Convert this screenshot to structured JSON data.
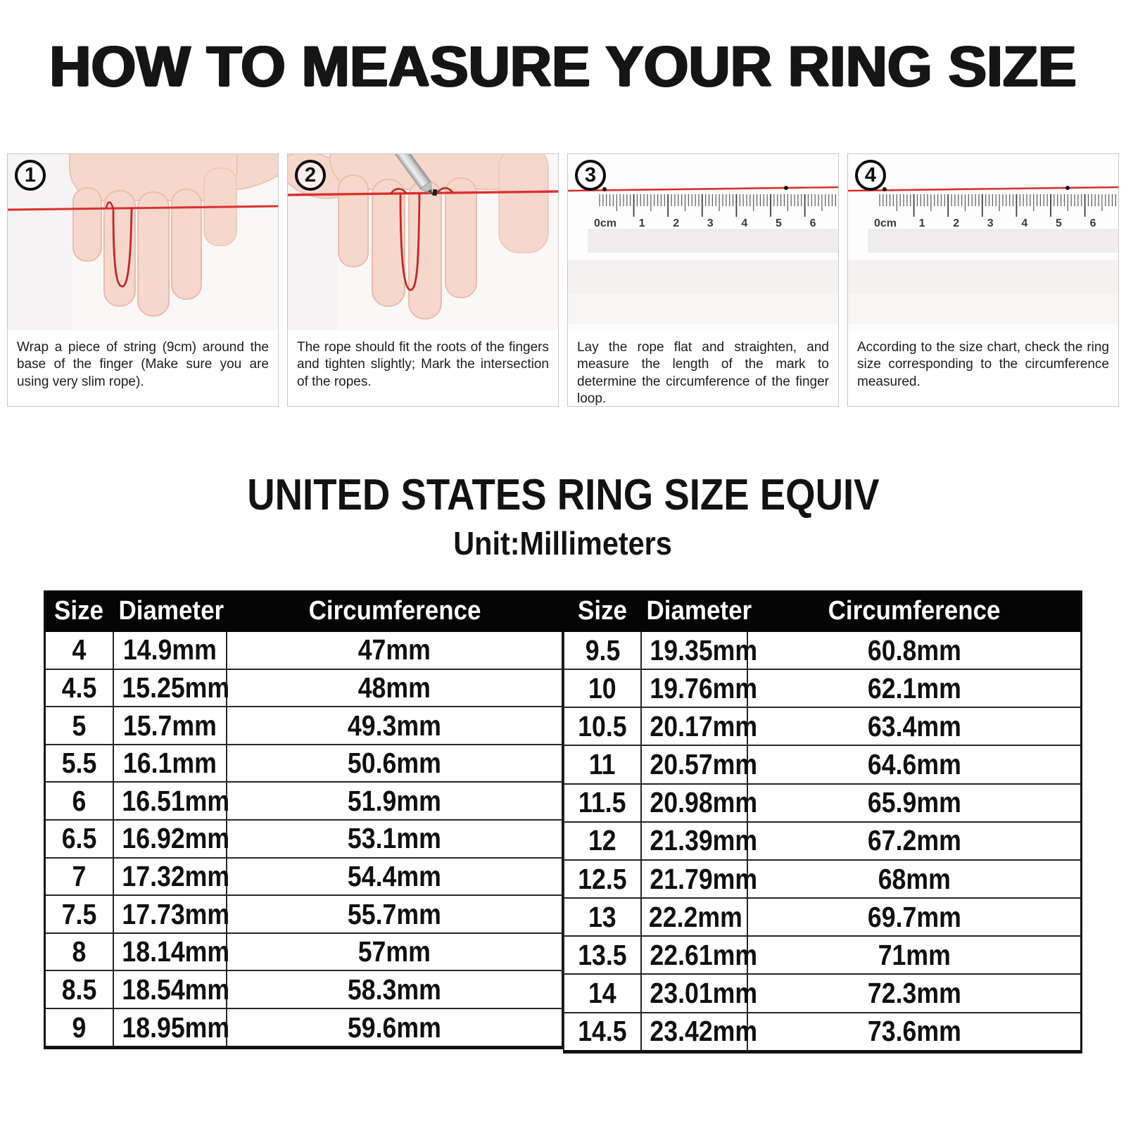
{
  "page": {
    "title": "HOW TO MEASURE YOUR RING SIZE"
  },
  "steps": [
    {
      "number": "1",
      "caption": "Wrap a piece of string (9cm) around the base of the finger (Make sure you are using very slim rope)."
    },
    {
      "number": "2",
      "caption": "The rope should fit the roots of the fingers and tighten slightly; Mark the intersection of the ropes."
    },
    {
      "number": "3",
      "caption": "Lay the rope flat and straighten, and measure the length of the mark to determine the circumference of the finger loop."
    },
    {
      "number": "4",
      "caption": "According to the size chart, check the ring size corresponding to the circumference measured."
    }
  ],
  "ruler": {
    "unit_labels": [
      "0cm",
      "1",
      "2",
      "3",
      "4",
      "5",
      "6"
    ]
  },
  "size_chart": {
    "title": "UNITED STATES RING SIZE EQUIV",
    "subtitle": "Unit:Millimeters",
    "column_headers": [
      "Size",
      "Diameter",
      "Circumference"
    ],
    "left_rows": [
      [
        "4",
        "14.9mm",
        "47mm"
      ],
      [
        "4.5",
        "15.25mm",
        "48mm"
      ],
      [
        "5",
        "15.7mm",
        "49.3mm"
      ],
      [
        "5.5",
        "16.1mm",
        "50.6mm"
      ],
      [
        "6",
        "16.51mm",
        "51.9mm"
      ],
      [
        "6.5",
        "16.92mm",
        "53.1mm"
      ],
      [
        "7",
        "17.32mm",
        "54.4mm"
      ],
      [
        "7.5",
        "17.73mm",
        "55.7mm"
      ],
      [
        "8",
        "18.14mm",
        "57mm"
      ],
      [
        "8.5",
        "18.54mm",
        "58.3mm"
      ],
      [
        "9",
        "18.95mm",
        "59.6mm"
      ]
    ],
    "right_rows": [
      [
        "9.5",
        "19.35mm",
        "60.8mm"
      ],
      [
        "10",
        "19.76mm",
        "62.1mm"
      ],
      [
        "10.5",
        "20.17mm",
        "63.4mm"
      ],
      [
        "11",
        "20.57mm",
        "64.6mm"
      ],
      [
        "11.5",
        "20.98mm",
        "65.9mm"
      ],
      [
        "12",
        "21.39mm",
        "67.2mm"
      ],
      [
        "12.5",
        "21.79mm",
        "68mm"
      ],
      [
        "13",
        "22.2mm",
        "69.7mm"
      ],
      [
        "13.5",
        "22.61mm",
        "71mm"
      ],
      [
        "14",
        "23.01mm",
        "72.3mm"
      ],
      [
        "14.5",
        "23.42mm",
        "73.6mm"
      ]
    ]
  },
  "colors": {
    "string_red": "#d9322e",
    "header_bg": "#040404",
    "header_text": "#ffffff",
    "skin": "#f6d7cc"
  }
}
